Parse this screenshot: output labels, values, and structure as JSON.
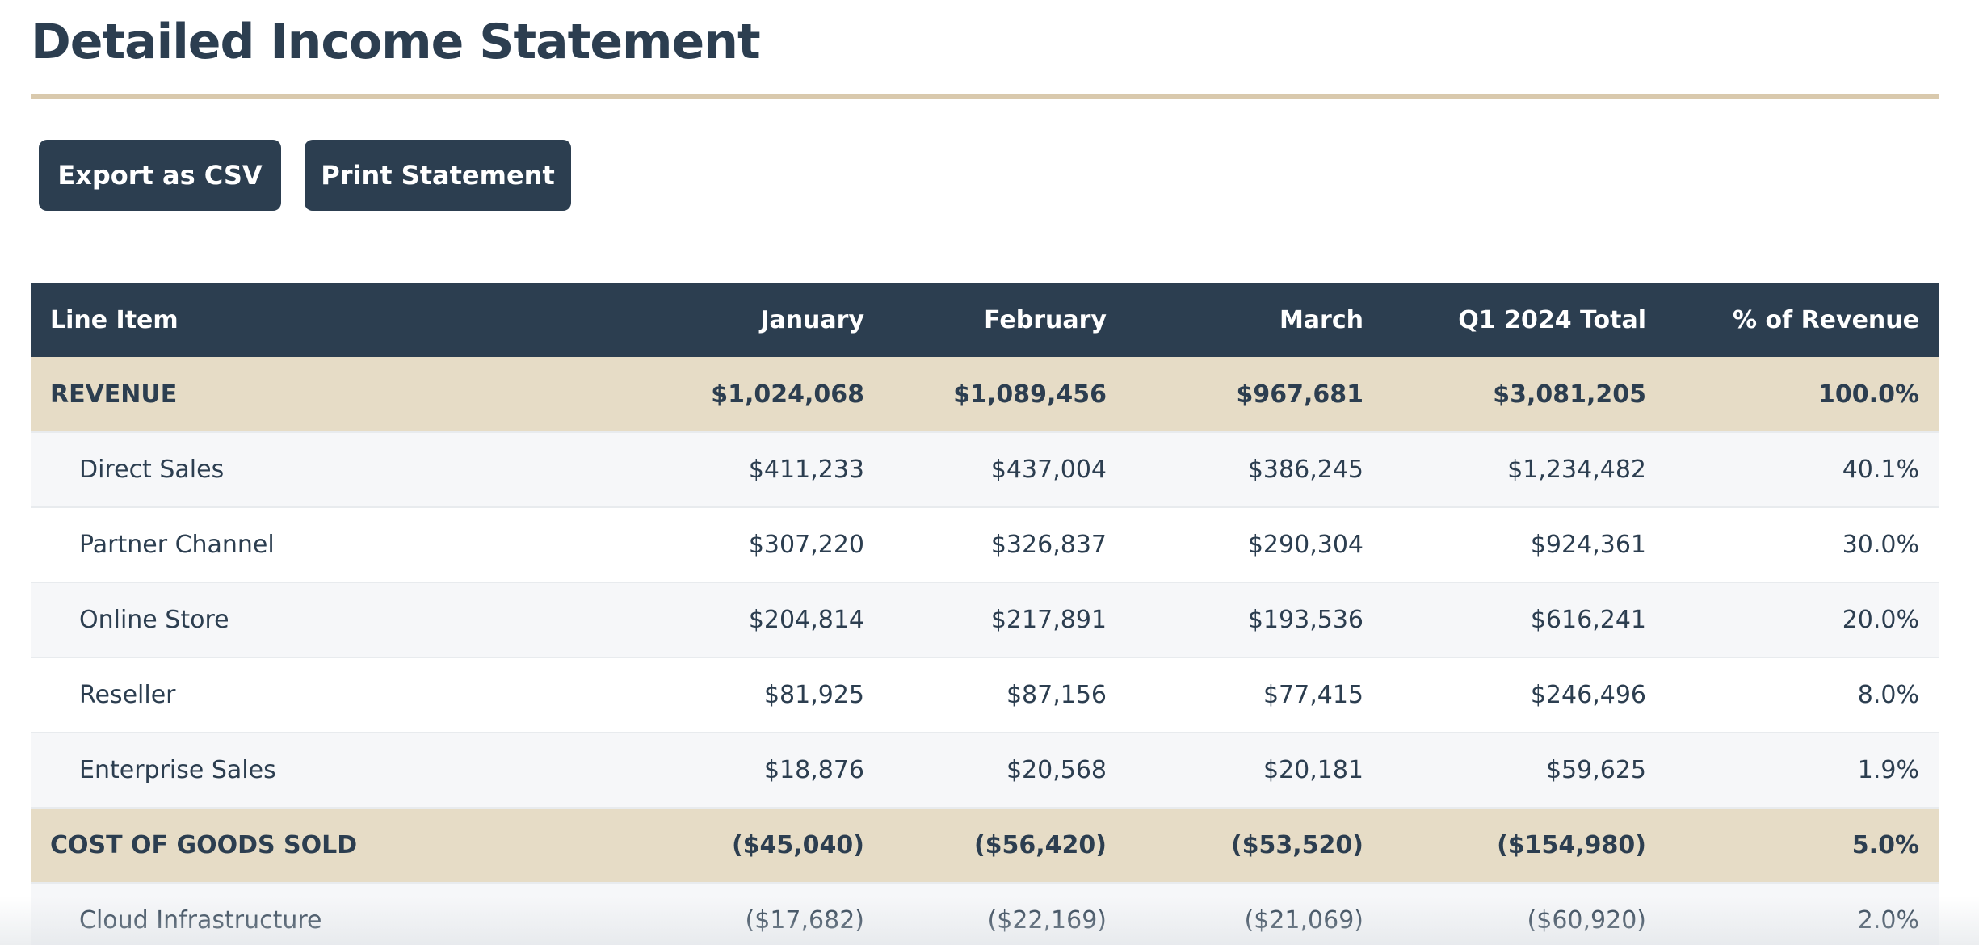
{
  "page": {
    "title": "Detailed Income Statement"
  },
  "toolbar": {
    "export_label": "Export as CSV",
    "print_label": "Print Statement"
  },
  "table": {
    "headers": [
      "Line Item",
      "January",
      "February",
      "March",
      "Q1 2024 Total",
      "% of Revenue"
    ],
    "rows": [
      {
        "type": "section",
        "cells": [
          "REVENUE",
          "$1,024,068",
          "$1,089,456",
          "$967,681",
          "$3,081,205",
          "100.0%"
        ]
      },
      {
        "type": "item",
        "cells": [
          "Direct Sales",
          "$411,233",
          "$437,004",
          "$386,245",
          "$1,234,482",
          "40.1%"
        ]
      },
      {
        "type": "item",
        "cells": [
          "Partner Channel",
          "$307,220",
          "$326,837",
          "$290,304",
          "$924,361",
          "30.0%"
        ]
      },
      {
        "type": "item",
        "cells": [
          "Online Store",
          "$204,814",
          "$217,891",
          "$193,536",
          "$616,241",
          "20.0%"
        ]
      },
      {
        "type": "item",
        "cells": [
          "Reseller",
          "$81,925",
          "$87,156",
          "$77,415",
          "$246,496",
          "8.0%"
        ]
      },
      {
        "type": "item",
        "cells": [
          "Enterprise Sales",
          "$18,876",
          "$20,568",
          "$20,181",
          "$59,625",
          "1.9%"
        ]
      },
      {
        "type": "section",
        "cells": [
          "COST OF GOODS SOLD",
          "($45,040)",
          "($56,420)",
          "($53,520)",
          "($154,980)",
          "5.0%"
        ]
      },
      {
        "type": "item",
        "cells": [
          "Cloud Infrastructure",
          "($17,682)",
          "($22,169)",
          "($21,069)",
          "($60,920)",
          "2.0%"
        ]
      }
    ]
  },
  "colors": {
    "primary": "#2c3e50",
    "section_bg": "#e6dcc6",
    "rule": "#d9c9ad",
    "row_alt": "#f6f7f9"
  }
}
